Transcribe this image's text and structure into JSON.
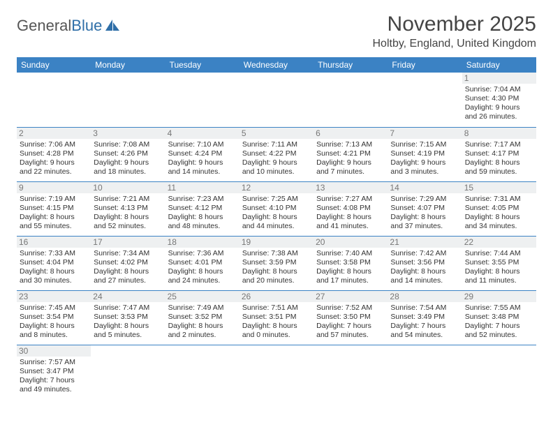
{
  "logo": {
    "text1": "General",
    "text2": "Blue"
  },
  "title": "November 2025",
  "location": "Holtby, England, United Kingdom",
  "dayHeaders": [
    "Sunday",
    "Monday",
    "Tuesday",
    "Wednesday",
    "Thursday",
    "Friday",
    "Saturday"
  ],
  "colors": {
    "headerBg": "#3b82c4",
    "headerText": "#ffffff",
    "rowBorder": "#3b82c4",
    "dayNumBg": "#eef0f1"
  },
  "weeks": [
    [
      null,
      null,
      null,
      null,
      null,
      null,
      {
        "n": "1",
        "sunrise": "Sunrise: 7:04 AM",
        "sunset": "Sunset: 4:30 PM",
        "day1": "Daylight: 9 hours",
        "day2": "and 26 minutes."
      }
    ],
    [
      {
        "n": "2",
        "sunrise": "Sunrise: 7:06 AM",
        "sunset": "Sunset: 4:28 PM",
        "day1": "Daylight: 9 hours",
        "day2": "and 22 minutes."
      },
      {
        "n": "3",
        "sunrise": "Sunrise: 7:08 AM",
        "sunset": "Sunset: 4:26 PM",
        "day1": "Daylight: 9 hours",
        "day2": "and 18 minutes."
      },
      {
        "n": "4",
        "sunrise": "Sunrise: 7:10 AM",
        "sunset": "Sunset: 4:24 PM",
        "day1": "Daylight: 9 hours",
        "day2": "and 14 minutes."
      },
      {
        "n": "5",
        "sunrise": "Sunrise: 7:11 AM",
        "sunset": "Sunset: 4:22 PM",
        "day1": "Daylight: 9 hours",
        "day2": "and 10 minutes."
      },
      {
        "n": "6",
        "sunrise": "Sunrise: 7:13 AM",
        "sunset": "Sunset: 4:21 PM",
        "day1": "Daylight: 9 hours",
        "day2": "and 7 minutes."
      },
      {
        "n": "7",
        "sunrise": "Sunrise: 7:15 AM",
        "sunset": "Sunset: 4:19 PM",
        "day1": "Daylight: 9 hours",
        "day2": "and 3 minutes."
      },
      {
        "n": "8",
        "sunrise": "Sunrise: 7:17 AM",
        "sunset": "Sunset: 4:17 PM",
        "day1": "Daylight: 8 hours",
        "day2": "and 59 minutes."
      }
    ],
    [
      {
        "n": "9",
        "sunrise": "Sunrise: 7:19 AM",
        "sunset": "Sunset: 4:15 PM",
        "day1": "Daylight: 8 hours",
        "day2": "and 55 minutes."
      },
      {
        "n": "10",
        "sunrise": "Sunrise: 7:21 AM",
        "sunset": "Sunset: 4:13 PM",
        "day1": "Daylight: 8 hours",
        "day2": "and 52 minutes."
      },
      {
        "n": "11",
        "sunrise": "Sunrise: 7:23 AM",
        "sunset": "Sunset: 4:12 PM",
        "day1": "Daylight: 8 hours",
        "day2": "and 48 minutes."
      },
      {
        "n": "12",
        "sunrise": "Sunrise: 7:25 AM",
        "sunset": "Sunset: 4:10 PM",
        "day1": "Daylight: 8 hours",
        "day2": "and 44 minutes."
      },
      {
        "n": "13",
        "sunrise": "Sunrise: 7:27 AM",
        "sunset": "Sunset: 4:08 PM",
        "day1": "Daylight: 8 hours",
        "day2": "and 41 minutes."
      },
      {
        "n": "14",
        "sunrise": "Sunrise: 7:29 AM",
        "sunset": "Sunset: 4:07 PM",
        "day1": "Daylight: 8 hours",
        "day2": "and 37 minutes."
      },
      {
        "n": "15",
        "sunrise": "Sunrise: 7:31 AM",
        "sunset": "Sunset: 4:05 PM",
        "day1": "Daylight: 8 hours",
        "day2": "and 34 minutes."
      }
    ],
    [
      {
        "n": "16",
        "sunrise": "Sunrise: 7:33 AM",
        "sunset": "Sunset: 4:04 PM",
        "day1": "Daylight: 8 hours",
        "day2": "and 30 minutes."
      },
      {
        "n": "17",
        "sunrise": "Sunrise: 7:34 AM",
        "sunset": "Sunset: 4:02 PM",
        "day1": "Daylight: 8 hours",
        "day2": "and 27 minutes."
      },
      {
        "n": "18",
        "sunrise": "Sunrise: 7:36 AM",
        "sunset": "Sunset: 4:01 PM",
        "day1": "Daylight: 8 hours",
        "day2": "and 24 minutes."
      },
      {
        "n": "19",
        "sunrise": "Sunrise: 7:38 AM",
        "sunset": "Sunset: 3:59 PM",
        "day1": "Daylight: 8 hours",
        "day2": "and 20 minutes."
      },
      {
        "n": "20",
        "sunrise": "Sunrise: 7:40 AM",
        "sunset": "Sunset: 3:58 PM",
        "day1": "Daylight: 8 hours",
        "day2": "and 17 minutes."
      },
      {
        "n": "21",
        "sunrise": "Sunrise: 7:42 AM",
        "sunset": "Sunset: 3:56 PM",
        "day1": "Daylight: 8 hours",
        "day2": "and 14 minutes."
      },
      {
        "n": "22",
        "sunrise": "Sunrise: 7:44 AM",
        "sunset": "Sunset: 3:55 PM",
        "day1": "Daylight: 8 hours",
        "day2": "and 11 minutes."
      }
    ],
    [
      {
        "n": "23",
        "sunrise": "Sunrise: 7:45 AM",
        "sunset": "Sunset: 3:54 PM",
        "day1": "Daylight: 8 hours",
        "day2": "and 8 minutes."
      },
      {
        "n": "24",
        "sunrise": "Sunrise: 7:47 AM",
        "sunset": "Sunset: 3:53 PM",
        "day1": "Daylight: 8 hours",
        "day2": "and 5 minutes."
      },
      {
        "n": "25",
        "sunrise": "Sunrise: 7:49 AM",
        "sunset": "Sunset: 3:52 PM",
        "day1": "Daylight: 8 hours",
        "day2": "and 2 minutes."
      },
      {
        "n": "26",
        "sunrise": "Sunrise: 7:51 AM",
        "sunset": "Sunset: 3:51 PM",
        "day1": "Daylight: 8 hours",
        "day2": "and 0 minutes."
      },
      {
        "n": "27",
        "sunrise": "Sunrise: 7:52 AM",
        "sunset": "Sunset: 3:50 PM",
        "day1": "Daylight: 7 hours",
        "day2": "and 57 minutes."
      },
      {
        "n": "28",
        "sunrise": "Sunrise: 7:54 AM",
        "sunset": "Sunset: 3:49 PM",
        "day1": "Daylight: 7 hours",
        "day2": "and 54 minutes."
      },
      {
        "n": "29",
        "sunrise": "Sunrise: 7:55 AM",
        "sunset": "Sunset: 3:48 PM",
        "day1": "Daylight: 7 hours",
        "day2": "and 52 minutes."
      }
    ],
    [
      {
        "n": "30",
        "sunrise": "Sunrise: 7:57 AM",
        "sunset": "Sunset: 3:47 PM",
        "day1": "Daylight: 7 hours",
        "day2": "and 49 minutes."
      },
      null,
      null,
      null,
      null,
      null,
      null
    ]
  ]
}
